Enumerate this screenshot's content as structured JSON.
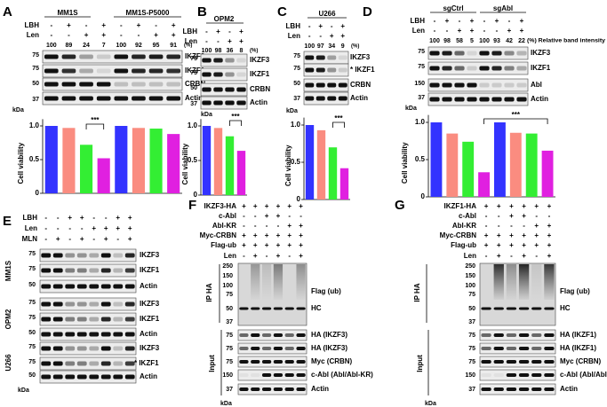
{
  "panels": {
    "A": {
      "letter": "A",
      "groups": [
        "MM1S",
        "MM1S-P5000"
      ],
      "rows": [
        {
          "name": "LBH",
          "signs": [
            "-",
            "+",
            "-",
            "+",
            "-",
            "+",
            "-",
            "+"
          ]
        },
        {
          "name": "Len",
          "signs": [
            "-",
            "-",
            "+",
            "+",
            "-",
            "-",
            "+",
            "+"
          ]
        }
      ],
      "intensity": [
        100,
        89,
        24,
        7,
        100,
        92,
        95,
        91
      ],
      "unit": "(%)",
      "bands": [
        "IKZF3",
        "IKZF1",
        "CRBN",
        "Actin"
      ],
      "mw": [
        "75",
        "75",
        "50",
        "37"
      ],
      "kda": "kDa"
    },
    "B": {
      "letter": "B",
      "groups": [
        "OPM2"
      ],
      "rows": [
        {
          "name": "LBH",
          "signs": [
            "-",
            "+",
            "-",
            "+"
          ]
        },
        {
          "name": "Len",
          "signs": [
            "-",
            "-",
            "+",
            "+"
          ]
        }
      ],
      "intensity": [
        100,
        98,
        36,
        8
      ],
      "unit": "(%)",
      "bands": [
        "IKZF3",
        "IKZF1",
        "CRBN",
        "Actin"
      ],
      "mw": [
        "75",
        "75",
        "50",
        "37"
      ],
      "kda": "kDa"
    },
    "C": {
      "letter": "C",
      "groups": [
        "U266"
      ],
      "rows": [
        {
          "name": "LBH",
          "signs": [
            "-",
            "+",
            "-",
            "+"
          ]
        },
        {
          "name": "Len",
          "signs": [
            "-",
            "-",
            "+",
            "+"
          ]
        }
      ],
      "intensity": [
        100,
        97,
        34,
        9
      ],
      "unit": "(%)",
      "bands": [
        "IKZF3",
        "* IKZF1",
        "CRBN",
        "Actin"
      ],
      "mw": [
        "75",
        "75",
        "50",
        "37"
      ],
      "kda": "kDa"
    },
    "D": {
      "letter": "D",
      "groups": [
        "sgCtrl",
        "sgAbl"
      ],
      "rows": [
        {
          "name": "LBH",
          "signs": [
            "-",
            "+",
            "-",
            "+",
            "-",
            "+",
            "-",
            "+"
          ]
        },
        {
          "name": "Len",
          "signs": [
            "-",
            "-",
            "+",
            "+",
            "-",
            "-",
            "+",
            "+"
          ]
        }
      ],
      "intensity": [
        100,
        98,
        58,
        5,
        100,
        93,
        42,
        22
      ],
      "unit": "(%) Relative band intensity",
      "bands": [
        "IKZF3",
        "IKZF1",
        "Abl",
        "Actin"
      ],
      "mw": [
        "75",
        "75",
        "150",
        "37"
      ],
      "kda": "kDa"
    },
    "E": {
      "letter": "E",
      "rows": [
        {
          "name": "LBH",
          "signs": [
            "-",
            "-",
            "+",
            "+",
            "-",
            "-",
            "+",
            "+"
          ]
        },
        {
          "name": "Len",
          "signs": [
            "-",
            "-",
            "-",
            "-",
            "+",
            "+",
            "+",
            "+"
          ]
        },
        {
          "name": "MLN",
          "signs": [
            "-",
            "+",
            "-",
            "+",
            "-",
            "+",
            "-",
            "+"
          ]
        }
      ],
      "cell_lines": [
        {
          "name": "MM1S",
          "bands": [
            "IKZF3",
            "IKZF1",
            "Actin"
          ],
          "mw": [
            "75",
            "75",
            "50"
          ]
        },
        {
          "name": "OPM2",
          "bands": [
            "IKZF3",
            "IKZF1",
            "Actin"
          ],
          "mw": [
            "75",
            "75",
            "50"
          ]
        },
        {
          "name": "U266",
          "bands": [
            "IKZF3",
            "* IKZF1",
            "Actin"
          ],
          "mw": [
            "75",
            "75",
            "50"
          ]
        }
      ],
      "kda": "kDa"
    },
    "F": {
      "letter": "F",
      "rows": [
        {
          "name": "IKZF3-HA",
          "signs": [
            "+",
            "+",
            "+",
            "+",
            "+",
            "+"
          ]
        },
        {
          "name": "c-Abl",
          "signs": [
            "-",
            "-",
            "+",
            "+",
            "-",
            "-"
          ]
        },
        {
          "name": "Abl-KR",
          "signs": [
            "-",
            "-",
            "-",
            "-",
            "+",
            "+"
          ]
        },
        {
          "name": "Myc-CRBN",
          "signs": [
            "+",
            "+",
            "+",
            "+",
            "+",
            "+"
          ]
        },
        {
          "name": "Flag-ub",
          "signs": [
            "+",
            "+",
            "+",
            "+",
            "+",
            "+"
          ]
        },
        {
          "name": "Len",
          "signs": [
            "-",
            "+",
            "-",
            "+",
            "-",
            "+"
          ]
        }
      ],
      "ip": "IP HA",
      "input": "Input",
      "ip_mw": [
        "250",
        "150",
        "100",
        "75",
        "50",
        "37"
      ],
      "ip_labels": [
        "Flag (ub)",
        "HC"
      ],
      "input_mw": [
        "75",
        "75",
        "75",
        "150",
        "37"
      ],
      "input_labels": [
        "HA (IKZF3)",
        "HA (IKZF3)",
        "Myc (CRBN)",
        "c-Abl (Abl/Abl-KR)",
        "Actin"
      ],
      "kda": "kDa"
    },
    "G": {
      "letter": "G",
      "rows": [
        {
          "name": "IKZF1-HA",
          "signs": [
            "+",
            "+",
            "+",
            "+",
            "+",
            "+"
          ]
        },
        {
          "name": "c-Abl",
          "signs": [
            "-",
            "-",
            "+",
            "+",
            "-",
            "-"
          ]
        },
        {
          "name": "Abl-KR",
          "signs": [
            "-",
            "-",
            "-",
            "-",
            "+",
            "+"
          ]
        },
        {
          "name": "Myc-CRBN",
          "signs": [
            "+",
            "+",
            "+",
            "+",
            "+",
            "+"
          ]
        },
        {
          "name": "Flag-ub",
          "signs": [
            "+",
            "+",
            "+",
            "+",
            "+",
            "+"
          ]
        },
        {
          "name": "Len",
          "signs": [
            "-",
            "+",
            "-",
            "+",
            "-",
            "+"
          ]
        }
      ],
      "ip": "IP HA",
      "input": "Input",
      "ip_mw": [
        "250",
        "150",
        "100",
        "75",
        "50",
        "37"
      ],
      "ip_labels": [
        "Flag (ub)",
        "HC"
      ],
      "input_mw": [
        "75",
        "75",
        "75",
        "150",
        "37"
      ],
      "input_labels": [
        "HA (IKZF1)",
        "HA (IKZF1)",
        "Myc (CRBN)",
        "c-Abl (Abl/Abl-KR)",
        "Actin"
      ],
      "kda": "kDa"
    }
  },
  "chart_data": [
    {
      "type": "bar",
      "y_label": "Cell viability",
      "categories": [
        null,
        null,
        null,
        null,
        null,
        null,
        null,
        null
      ],
      "values": [
        1.0,
        0.97,
        0.72,
        0.52,
        1.0,
        0.97,
        0.96,
        0.88
      ],
      "colors": [
        "#3333ff",
        "#fa8c80",
        "#33ee33",
        "#e020e0",
        "#3333ff",
        "#fa8c80",
        "#33ee33",
        "#e020e0"
      ],
      "ylim": [
        0,
        1.1
      ],
      "yticks": [
        0,
        0.5,
        {
          "value": 1,
          "label": "1.0"
        }
      ],
      "annotation": "***"
    },
    {
      "type": "bar",
      "y_label": "Cell viability",
      "categories": [
        null,
        null,
        null,
        null
      ],
      "values": [
        1.0,
        0.97,
        0.85,
        0.64
      ],
      "colors": [
        "#3333ff",
        "#fa8c80",
        "#33ee33",
        "#e020e0"
      ],
      "ylim": [
        0,
        1.1
      ],
      "yticks": [
        0,
        0.5,
        {
          "value": 1,
          "label": "1.0"
        }
      ],
      "annotation": "***"
    },
    {
      "type": "bar",
      "y_label": "Cell viability",
      "categories": [
        null,
        null,
        null,
        null
      ],
      "values": [
        1.0,
        0.93,
        0.7,
        0.42
      ],
      "colors": [
        "#3333ff",
        "#fa8c80",
        "#33ee33",
        "#e020e0"
      ],
      "ylim": [
        0,
        1.1
      ],
      "yticks": [
        0,
        0.5,
        {
          "value": 1,
          "label": "1.0"
        }
      ],
      "annotation": "***"
    },
    {
      "type": "bar",
      "y_label": "Cell viability",
      "categories": [
        null,
        null,
        null,
        null,
        null,
        null,
        null,
        null
      ],
      "values": [
        1.0,
        0.85,
        0.74,
        0.33,
        1.0,
        0.86,
        0.85,
        0.62
      ],
      "colors": [
        "#3333ff",
        "#fa8c80",
        "#33ee33",
        "#e020e0",
        "#3333ff",
        "#fa8c80",
        "#33ee33",
        "#e020e0"
      ],
      "ylim": [
        0,
        1.1
      ],
      "yticks": [
        0,
        0.5,
        {
          "value": 1,
          "label": "1.0"
        }
      ],
      "annotation": "***"
    }
  ]
}
